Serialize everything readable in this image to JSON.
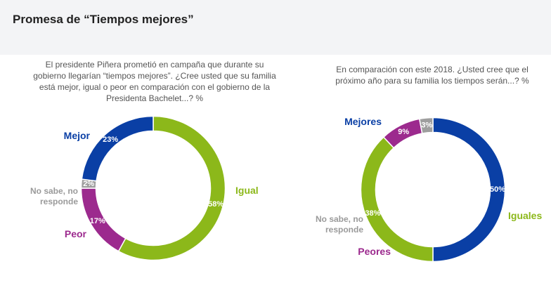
{
  "page_title": "Promesa de “Tiempos mejores”",
  "chart_data": [
    {
      "type": "pie",
      "donut": true,
      "question": "El presidente Piñera prometió en campaña que durante su gobierno llegarían “tiempos mejores”. ¿Cree usted que su familia está mejor, igual o peor en comparación con el gobierno de la Presidenta Bachelet...? %",
      "slices": [
        {
          "label": "Igual",
          "value": 58,
          "display": "58%",
          "color": "#8cb81a"
        },
        {
          "label": "Peor",
          "value": 17,
          "display": "17%",
          "color": "#9c2a8e"
        },
        {
          "label": "No sabe, no responde",
          "label_lines": [
            "No sabe, no",
            "responde"
          ],
          "value": 2,
          "display": "2%",
          "color": "#9e9e9e"
        },
        {
          "label": "Mejor",
          "value": 23,
          "display": "23%",
          "color": "#0a3fa5"
        }
      ]
    },
    {
      "type": "pie",
      "donut": true,
      "question": "En comparación con este 2018. ¿Usted cree que el próximo año para su familia los tiempos serán...? %",
      "slices": [
        {
          "label": "Mejores",
          "value": 50,
          "display": "50%",
          "color": "#0a3fa5"
        },
        {
          "label": "Iguales",
          "value": 38,
          "display": "38%",
          "color": "#8cb81a"
        },
        {
          "label": "Peores",
          "value": 9,
          "display": "9%",
          "color": "#9c2a8e"
        },
        {
          "label": "No sabe, no responde",
          "label_lines": [
            "No sabe, no",
            "responde"
          ],
          "value": 3,
          "display": "3%",
          "color": "#9e9e9e"
        }
      ]
    }
  ]
}
